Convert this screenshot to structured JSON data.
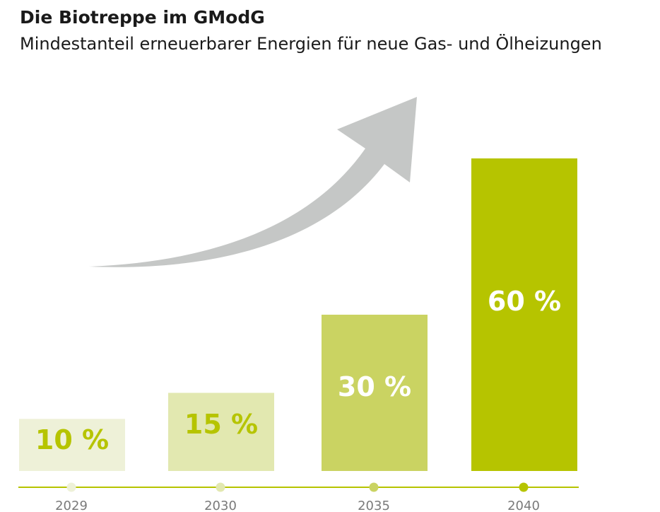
{
  "header": {
    "title": "Die Biotreppe im GModG",
    "subtitle": "Mindestanteil erneuerbarer Energien für neue Gas- und Ölheizungen"
  },
  "chart_data": {
    "type": "bar",
    "title": "Die Biotreppe im GModG",
    "subtitle": "Mindestanteil erneuerbarer Energien für neue Gas- und Ölheizungen",
    "categories": [
      "2029",
      "2030",
      "2035",
      "2040"
    ],
    "values": [
      10,
      15,
      30,
      60
    ],
    "data_labels": [
      "10 %",
      "15 %",
      "30 %",
      "60 %"
    ],
    "unit": "%",
    "ylim": [
      0,
      60
    ],
    "grid": false,
    "legend": "none",
    "colors": {
      "bars": [
        "#eef1d8",
        "#e2e8b0",
        "#cad362",
        "#b6c400"
      ],
      "label_on_light": "#b6c400",
      "label_on_dark": "#ffffff",
      "axis_line": "#b6c400",
      "axis_dots": [
        "#eef1d8",
        "#e2e8b0",
        "#cad362",
        "#b6c400"
      ],
      "tick_label": "#7a7a7a",
      "arrow": "#c5c7c6"
    },
    "decorations": {
      "trend_arrow": "arrow-up-right-icon"
    }
  }
}
